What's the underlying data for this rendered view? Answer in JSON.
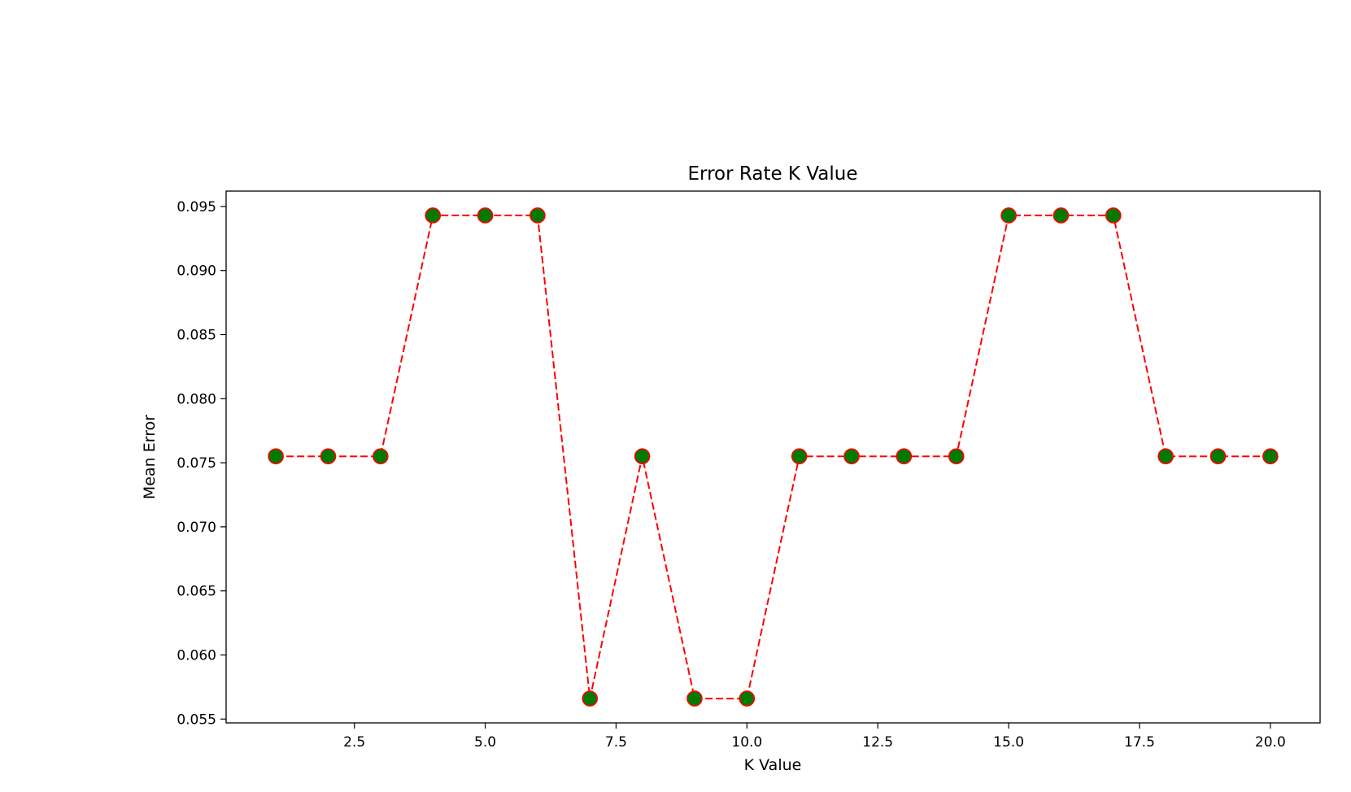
{
  "chart_data": {
    "type": "line",
    "title": "Error Rate K Value",
    "xlabel": "K Value",
    "ylabel": "Mean Error",
    "xlim": [
      0.05,
      20.95
    ],
    "ylim": [
      0.0547,
      0.0962
    ],
    "xticks": [
      "2.5",
      "5.0",
      "7.5",
      "10.0",
      "12.5",
      "15.0",
      "17.5",
      "20.0"
    ],
    "yticks": [
      "0.055",
      "0.060",
      "0.065",
      "0.070",
      "0.075",
      "0.080",
      "0.085",
      "0.090",
      "0.095"
    ],
    "grid": false,
    "series": [
      {
        "x": [
          1,
          2,
          3,
          4,
          5,
          6,
          7,
          8,
          9,
          10,
          11,
          12,
          13,
          14,
          15,
          16,
          17,
          18,
          19,
          20
        ],
        "values": [
          0.0755,
          0.0755,
          0.0755,
          0.0943,
          0.0943,
          0.0943,
          0.0566,
          0.0755,
          0.0566,
          0.0566,
          0.0755,
          0.0755,
          0.0755,
          0.0755,
          0.0943,
          0.0943,
          0.0943,
          0.0755,
          0.0755,
          0.0755
        ],
        "line_color": "#ff0000",
        "line_style": "dashed",
        "marker": "circle",
        "marker_face_color": "#007a00",
        "marker_edge_color": "#ff0000"
      }
    ]
  }
}
